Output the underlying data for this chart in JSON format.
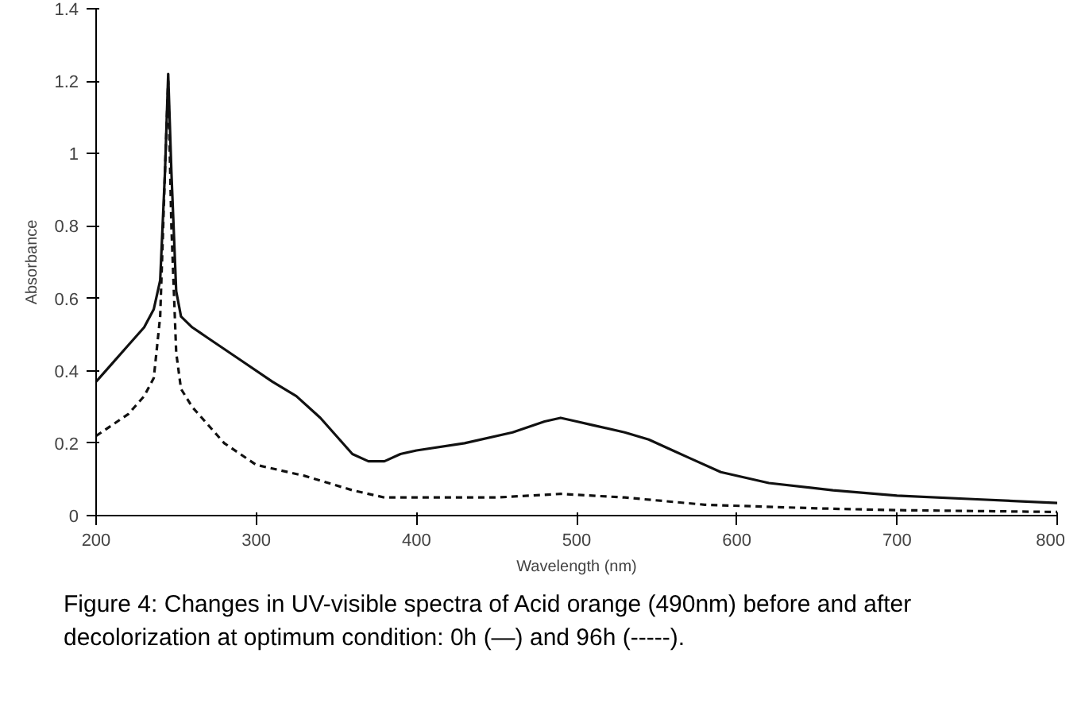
{
  "chart_data": {
    "type": "line",
    "xlabel": "Wavelength (nm)",
    "ylabel": "Absorbance",
    "xlim": [
      200,
      800
    ],
    "ylim": [
      0,
      1.4
    ],
    "xticks": [
      200,
      300,
      400,
      500,
      600,
      700,
      800
    ],
    "yticks": [
      0,
      0.2,
      0.4,
      0.6,
      0.8,
      1,
      1.2,
      1.4
    ],
    "marker": "none",
    "annotations": [
      "Figure 4: Changes in UV-visible spectra of Acid orange (490nm) before and after decolorization at optimum condition: 0h (—) and 96h (-----)."
    ],
    "series": [
      {
        "color": "#111111",
        "line_style": "solid",
        "x": [
          200,
          210,
          220,
          230,
          236,
          240,
          243,
          245,
          247,
          250,
          253,
          260,
          270,
          290,
          310,
          325,
          340,
          350,
          360,
          370,
          380,
          390,
          400,
          430,
          460,
          480,
          490,
          500,
          510,
          530,
          545,
          560,
          570,
          590,
          620,
          660,
          700,
          750,
          800
        ],
        "values": [
          0.37,
          0.42,
          0.47,
          0.52,
          0.57,
          0.65,
          0.95,
          1.22,
          0.95,
          0.62,
          0.55,
          0.52,
          0.49,
          0.43,
          0.37,
          0.33,
          0.27,
          0.22,
          0.17,
          0.15,
          0.15,
          0.17,
          0.18,
          0.2,
          0.23,
          0.26,
          0.27,
          0.26,
          0.25,
          0.23,
          0.21,
          0.18,
          0.16,
          0.12,
          0.09,
          0.07,
          0.055,
          0.045,
          0.035
        ]
      },
      {
        "color": "#111111",
        "line_style": "dashed",
        "x": [
          200,
          210,
          220,
          230,
          236,
          240,
          243,
          245,
          247,
          250,
          253,
          260,
          280,
          300,
          330,
          360,
          380,
          420,
          450,
          490,
          530,
          580,
          650,
          700,
          800
        ],
        "values": [
          0.22,
          0.25,
          0.28,
          0.33,
          0.38,
          0.55,
          0.95,
          1.2,
          0.8,
          0.45,
          0.35,
          0.3,
          0.2,
          0.14,
          0.11,
          0.07,
          0.05,
          0.05,
          0.05,
          0.06,
          0.05,
          0.03,
          0.02,
          0.015,
          0.01
        ]
      }
    ]
  }
}
